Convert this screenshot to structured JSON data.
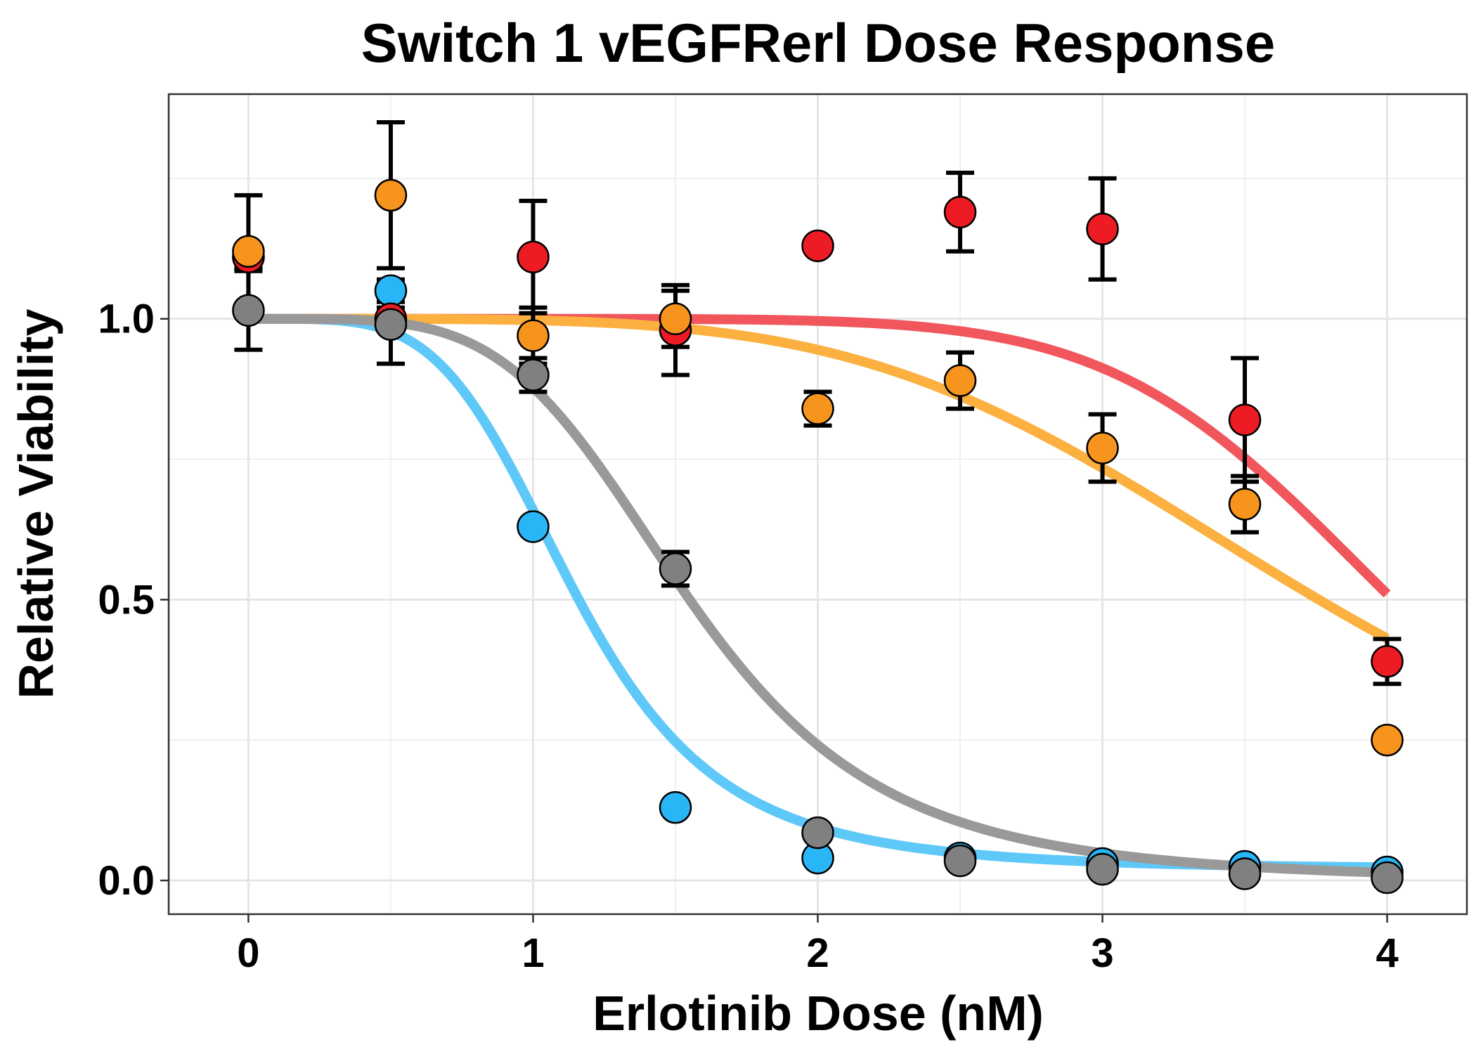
{
  "chart_data": {
    "type": "scatter",
    "title": "Switch 1 vEGFRerl Dose Response",
    "xlabel": "Erlotinib Dose (nM)",
    "ylabel": "Relative Viability",
    "xlim": [
      -0.28,
      4.28
    ],
    "ylim": [
      -0.06,
      1.4
    ],
    "x_ticks": [
      0,
      1,
      2,
      3,
      4
    ],
    "x_tick_labels": [
      "0",
      "1",
      "2",
      "3",
      "4"
    ],
    "y_ticks": [
      0.0,
      0.5,
      1.0
    ],
    "y_tick_labels": [
      "0.0",
      "0.5",
      "1.0"
    ],
    "grid": true,
    "legend": "none",
    "series": [
      {
        "color": "#29b6f6",
        "curve_color": "#5ec8f8",
        "curve": {
          "top": 1.0,
          "bottom": 0.02,
          "ic50": 1.15,
          "hill": 4.5
        },
        "points": [
          {
            "x": 0.0,
            "y": 1.11,
            "err": 0.02
          },
          {
            "x": 0.5,
            "y": 1.05,
            "err": 0.02
          },
          {
            "x": 1.0,
            "y": 0.63,
            "err": 0.01
          },
          {
            "x": 1.5,
            "y": 0.13,
            "err": 0.01
          },
          {
            "x": 2.0,
            "y": 0.04,
            "err": 0.01
          },
          {
            "x": 2.5,
            "y": 0.04,
            "err": 0.01
          },
          {
            "x": 3.0,
            "y": 0.03,
            "err": 0.01
          },
          {
            "x": 3.5,
            "y": 0.025,
            "err": 0.01
          },
          {
            "x": 4.0,
            "y": 0.015,
            "err": 0.01
          }
        ]
      },
      {
        "color": "#ed1c24",
        "curve_color": "#f0565c",
        "curve": {
          "top": 1.0,
          "bottom": 0.0,
          "ic50": 4.02,
          "hill": 8.0
        },
        "points": [
          {
            "x": 0.0,
            "y": 1.11,
            "err": 0.02
          },
          {
            "x": 0.5,
            "y": 1.0,
            "err": 0.02
          },
          {
            "x": 1.0,
            "y": 1.11,
            "err": 0.1
          },
          {
            "x": 1.5,
            "y": 0.98,
            "err": 0.08
          },
          {
            "x": 2.0,
            "y": 1.13,
            "err": 0.01
          },
          {
            "x": 2.5,
            "y": 1.19,
            "err": 0.07
          },
          {
            "x": 3.0,
            "y": 1.16,
            "err": 0.09
          },
          {
            "x": 3.5,
            "y": 0.82,
            "err": 0.11
          },
          {
            "x": 4.0,
            "y": 0.39,
            "err": 0.04
          }
        ]
      },
      {
        "color": "#f7941d",
        "curve_color": "#fbb040",
        "curve": {
          "top": 1.0,
          "bottom": 0.0,
          "ic50": 3.76,
          "hill": 4.5
        },
        "points": [
          {
            "x": 0.0,
            "y": 1.12,
            "err": 0.1
          },
          {
            "x": 0.5,
            "y": 1.22,
            "err": 0.13
          },
          {
            "x": 1.0,
            "y": 0.97,
            "err": 0.05
          },
          {
            "x": 1.5,
            "y": 1.0,
            "err": 0.05
          },
          {
            "x": 2.0,
            "y": 0.84,
            "err": 0.03
          },
          {
            "x": 2.5,
            "y": 0.89,
            "err": 0.05
          },
          {
            "x": 3.0,
            "y": 0.77,
            "err": 0.06
          },
          {
            "x": 3.5,
            "y": 0.67,
            "err": 0.05
          },
          {
            "x": 4.0,
            "y": 0.25,
            "err": 0.01
          }
        ]
      },
      {
        "color": "#808080",
        "curve_color": "#999999",
        "curve": {
          "top": 1.0,
          "bottom": 0.0,
          "ic50": 1.55,
          "hill": 4.5
        },
        "points": [
          {
            "x": 0.0,
            "y": 1.015,
            "err": 0.07
          },
          {
            "x": 0.5,
            "y": 0.99,
            "err": 0.07
          },
          {
            "x": 1.0,
            "y": 0.9,
            "err": 0.03
          },
          {
            "x": 1.5,
            "y": 0.555,
            "err": 0.03
          },
          {
            "x": 2.0,
            "y": 0.085,
            "err": 0.01
          },
          {
            "x": 2.5,
            "y": 0.035,
            "err": 0.01
          },
          {
            "x": 3.0,
            "y": 0.02,
            "err": 0.01
          },
          {
            "x": 3.5,
            "y": 0.012,
            "err": 0.01
          },
          {
            "x": 4.0,
            "y": 0.005,
            "err": 0.01
          }
        ]
      }
    ]
  }
}
